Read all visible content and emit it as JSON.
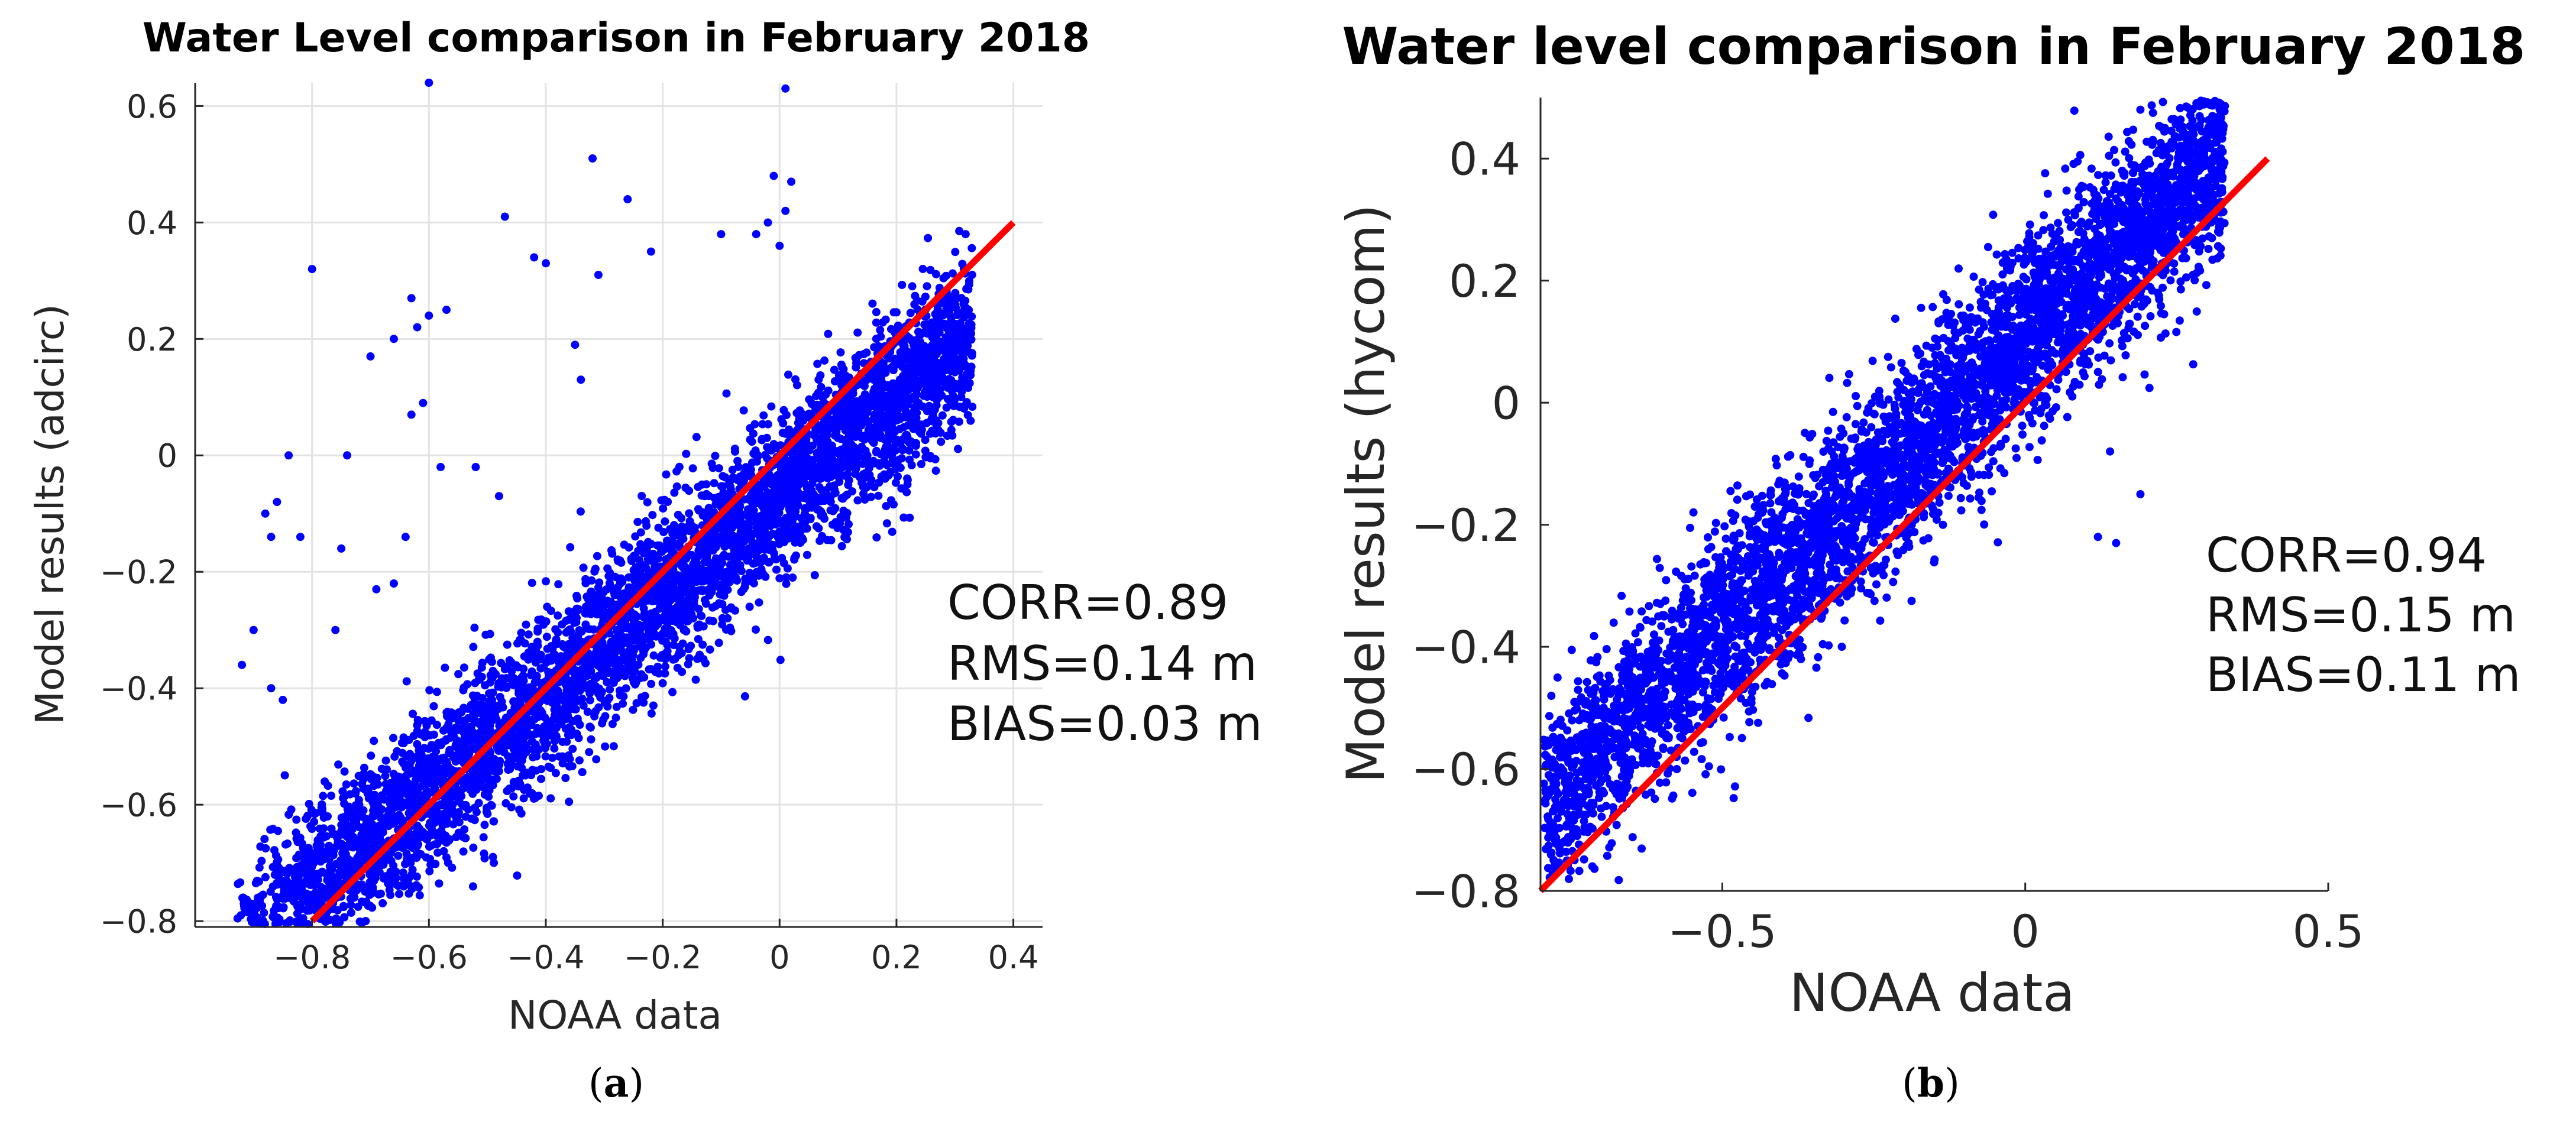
{
  "chart_data": [
    {
      "type": "scatter",
      "panel_label": "a",
      "title": "Water Level comparison in February 2018",
      "xlabel": "NOAA data",
      "ylabel": "Model results (adcirc)",
      "xlim": [
        -1.0,
        0.45
      ],
      "ylim": [
        -0.81,
        0.64
      ],
      "x_ticks": [
        -0.8,
        -0.6,
        -0.4,
        -0.2,
        0,
        0.2,
        0.4
      ],
      "x_tick_labels": [
        "−0.8",
        "−0.6",
        "−0.4",
        "−0.2",
        "0",
        "0.2",
        "0.4"
      ],
      "y_ticks": [
        -0.8,
        -0.6,
        -0.4,
        -0.2,
        0,
        0.2,
        0.4,
        0.6
      ],
      "y_tick_labels": [
        "−0.8",
        "−0.6",
        "−0.4",
        "−0.2",
        "0",
        "0.2",
        "0.4",
        "0.6"
      ],
      "grid": true,
      "series": [
        {
          "name": "scatter",
          "color": "#0000ff",
          "n_points": 5000,
          "x_range": [
            -0.93,
            0.33
          ],
          "slope": 0.85,
          "intercept": -0.07,
          "spread": 0.07
        },
        {
          "name": "1:1 line",
          "color": "#ff0000",
          "x": [
            -0.8,
            0.4
          ],
          "y": [
            -0.8,
            0.4
          ]
        }
      ],
      "outliers": [
        [
          -0.6,
          0.64
        ],
        [
          0.01,
          0.63
        ],
        [
          -0.32,
          0.51
        ],
        [
          -0.47,
          0.41
        ],
        [
          -0.26,
          0.44
        ],
        [
          -0.8,
          0.32
        ],
        [
          -0.4,
          0.33
        ],
        [
          -0.22,
          0.35
        ],
        [
          -0.31,
          0.31
        ],
        [
          -0.42,
          0.34
        ],
        [
          -0.63,
          0.27
        ],
        [
          -0.66,
          0.2
        ],
        [
          -0.57,
          0.25
        ],
        [
          -0.7,
          0.17
        ],
        [
          -0.35,
          0.19
        ],
        [
          -0.34,
          0.13
        ],
        [
          -0.6,
          0.24
        ],
        [
          -0.62,
          0.22
        ],
        [
          -0.61,
          0.09
        ],
        [
          -0.63,
          0.07
        ],
        [
          -0.74,
          0.0
        ],
        [
          -0.84,
          0.0
        ],
        [
          -0.86,
          -0.08
        ],
        [
          -0.88,
          -0.1
        ],
        [
          -0.87,
          -0.14
        ],
        [
          -0.82,
          -0.14
        ],
        [
          -0.75,
          -0.16
        ],
        [
          -0.76,
          -0.3
        ],
        [
          -0.9,
          -0.3
        ],
        [
          -0.92,
          -0.36
        ],
        [
          -0.87,
          -0.4
        ],
        [
          -0.85,
          -0.42
        ],
        [
          -0.58,
          -0.02
        ],
        [
          -0.52,
          -0.02
        ],
        [
          -0.48,
          -0.07
        ],
        [
          -0.64,
          -0.14
        ],
        [
          -0.66,
          -0.22
        ],
        [
          -0.69,
          -0.23
        ],
        [
          -0.01,
          0.48
        ],
        [
          0.02,
          0.47
        ],
        [
          -0.02,
          0.4
        ],
        [
          0.01,
          0.42
        ],
        [
          -0.04,
          0.38
        ],
        [
          0.0,
          0.36
        ],
        [
          -0.1,
          0.38
        ]
      ],
      "annotations": {
        "corr": "CORR=0.89",
        "rms": "RMS=0.14 m",
        "bias": "BIAS=0.03 m"
      }
    },
    {
      "type": "scatter",
      "panel_label": "b",
      "title": "Water level comparison in February 2018",
      "xlabel": "NOAA data",
      "ylabel": "Model results (hycom)",
      "xlim": [
        -0.8,
        0.5
      ],
      "ylim": [
        -0.8,
        0.5
      ],
      "x_ticks": [
        -0.5,
        0,
        0.5
      ],
      "x_tick_labels": [
        "−0.5",
        "0",
        "0.5"
      ],
      "y_ticks": [
        -0.8,
        -0.6,
        -0.4,
        -0.2,
        0,
        0.2,
        0.4
      ],
      "y_tick_labels": [
        "−0.8",
        "−0.6",
        "−0.4",
        "−0.2",
        "0",
        "0.2",
        "0.4"
      ],
      "grid": false,
      "series": [
        {
          "name": "scatter",
          "color": "#0000ff",
          "n_points": 5000,
          "x_range": [
            -0.8,
            0.33
          ],
          "slope": 0.95,
          "intercept": 0.1,
          "spread": 0.08
        },
        {
          "name": "1:1 line",
          "color": "#ff0000",
          "x": [
            -0.8,
            0.4
          ],
          "y": [
            -0.8,
            0.4
          ]
        }
      ],
      "outliers": [
        [
          0.19,
          0.48
        ],
        [
          0.16,
          0.38
        ],
        [
          0.15,
          -0.23
        ],
        [
          0.19,
          -0.15
        ],
        [
          0.12,
          -0.22
        ],
        [
          0.14,
          -0.08
        ]
      ],
      "annotations": {
        "corr": "CORR=0.94",
        "rms": "RMS=0.15 m",
        "bias": "BIAS=0.11 m"
      }
    }
  ],
  "captions": {
    "a": {
      "open": "(",
      "letter": "a",
      "close": ")"
    },
    "b": {
      "open": "(",
      "letter": "b",
      "close": ")"
    }
  }
}
